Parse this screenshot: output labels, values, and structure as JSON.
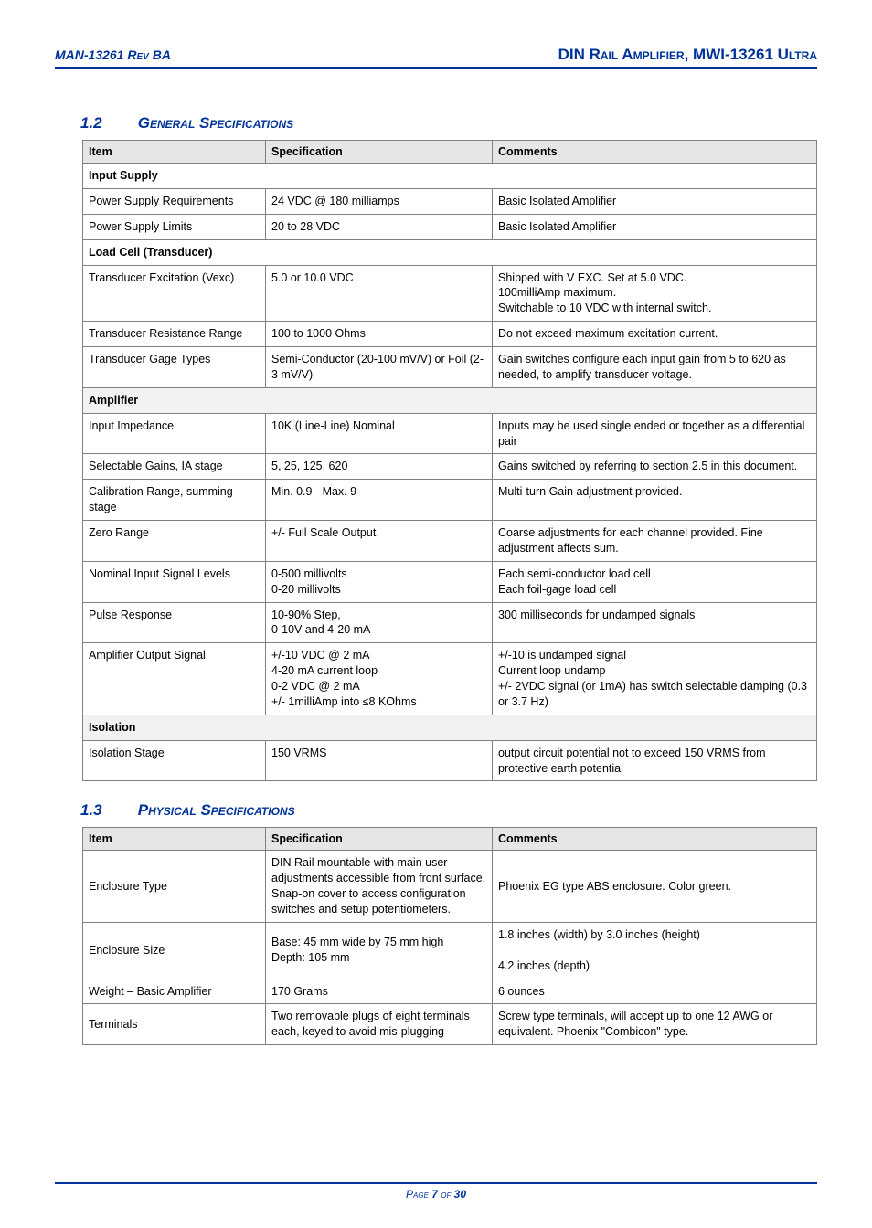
{
  "header": {
    "rev": "MAN-13261 Rev BA",
    "title": "DIN Rail Amplifier, MWI-13261 Ultra"
  },
  "section1": {
    "number": "1.2",
    "title": "General Specifications",
    "cols": [
      "Item",
      "Specification",
      "Comments"
    ],
    "groups": [
      {
        "name": "Input Supply",
        "style": "white",
        "rows": [
          {
            "item": "Power Supply Requirements",
            "spec": "24 VDC @ 180 milliamps",
            "comment": "Basic Isolated Amplifier"
          },
          {
            "item": "Power Supply Limits",
            "spec": "20 to 28 VDC",
            "comment": "Basic Isolated Amplifier"
          }
        ]
      },
      {
        "name": "Load Cell (Transducer)",
        "style": "white",
        "rows": [
          {
            "item": "Transducer Excitation (Vexc)",
            "spec": "5.0 or 10.0 VDC",
            "comment": "Shipped with V EXC. Set at 5.0 VDC.\n100milliAmp maximum.\nSwitchable to 10 VDC with internal switch."
          },
          {
            "item": "Transducer Resistance Range",
            "spec": "100 to 1000 Ohms",
            "comment": "Do not exceed maximum excitation current."
          },
          {
            "item": "Transducer Gage Types",
            "spec": "Semi-Conductor (20-100 mV/V) or Foil (2-3 mV/V)",
            "comment": "Gain switches configure each input gain from 5 to 620 as needed, to amplify transducer voltage."
          }
        ]
      },
      {
        "name": "Amplifier",
        "style": "gray",
        "rows": [
          {
            "item": "Input Impedance",
            "spec": "10K (Line-Line) Nominal",
            "comment": "Inputs may be used single ended or together as a differential pair"
          },
          {
            "item": "Selectable Gains, IA stage",
            "spec": "5, 25, 125, 620",
            "comment": "Gains switched by referring to section 2.5 in this document."
          },
          {
            "item": "Calibration Range, summing stage",
            "spec": "Min. 0.9   -   Max. 9",
            "comment": "Multi-turn Gain adjustment provided."
          },
          {
            "item": "Zero Range",
            "spec": "+/- Full Scale Output",
            "comment": "Coarse adjustments for each channel provided. Fine adjustment affects sum."
          },
          {
            "item": "Nominal Input Signal Levels",
            "spec": "0-500 millivolts\n0-20 millivolts",
            "comment": "Each semi-conductor load cell\nEach foil-gage load cell"
          },
          {
            "item": "Pulse Response",
            "spec": "10-90% Step,\n0-10V and 4-20 mA",
            "comment": "300 milliseconds for undamped signals"
          },
          {
            "item": "Amplifier Output Signal",
            "spec": "+/-10 VDC @ 2 mA\n4-20 mA current loop\n0-2 VDC @ 2 mA\n+/- 1milliAmp into ≤8 KOhms",
            "comment": "+/-10 is undamped signal\nCurrent loop undamp\n+/- 2VDC signal (or 1mA) has switch selectable damping (0.3 or 3.7 Hz)"
          }
        ]
      },
      {
        "name": "Isolation",
        "style": "gray",
        "rows": [
          {
            "item": "Isolation Stage",
            "spec": "150 VRMS",
            "comment": "output circuit potential not to exceed 150 VRMS from protective earth potential"
          }
        ]
      }
    ]
  },
  "section2": {
    "number": "1.3",
    "title": "Physical Specifications",
    "cols": [
      "Item",
      "Specification",
      "Comments"
    ],
    "rows": [
      {
        "item": "Enclosure Type",
        "spec": "DIN Rail mountable with main user adjustments accessible from front surface.  Snap-on cover to access configuration switches and setup potentiometers.",
        "comment": "Phoenix EG type ABS enclosure. Color green."
      },
      {
        "item": "Enclosure Size",
        "spec": "Base: 45 mm wide by 75 mm high\nDepth: 105 mm",
        "comment": "1.8 inches (width) by 3.0 inches (height)\n\n4.2 inches (depth)"
      },
      {
        "item": "Weight – Basic Amplifier",
        "spec": "170 Grams",
        "comment": "6 ounces"
      },
      {
        "item": "Terminals",
        "spec": "Two removable plugs of eight terminals each, keyed to avoid mis-plugging",
        "comment": "Screw type terminals, will accept up to one 12 AWG or equivalent. Phoenix \"Combicon\" type."
      }
    ]
  },
  "footer": {
    "prefix": "Page ",
    "num": "7",
    "of": " of ",
    "total": "30"
  }
}
